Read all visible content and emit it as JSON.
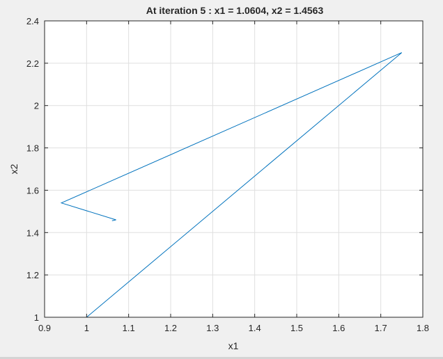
{
  "chart_data": {
    "type": "line",
    "title": "At iteration 5 : x1 = 1.0604, x2 = 1.4563",
    "xlabel": "x1",
    "ylabel": "x2",
    "xlim": [
      0.9,
      1.8
    ],
    "ylim": [
      1.0,
      2.4
    ],
    "xticks": [
      0.9,
      1.0,
      1.1,
      1.2,
      1.3,
      1.4,
      1.5,
      1.6,
      1.7,
      1.8
    ],
    "yticks": [
      1.0,
      1.2,
      1.4,
      1.6,
      1.8,
      2.0,
      2.2,
      2.4
    ],
    "xtick_labels": [
      "0.9",
      "1",
      "1.1",
      "1.2",
      "1.3",
      "1.4",
      "1.5",
      "1.6",
      "1.7",
      "1.8"
    ],
    "ytick_labels": [
      "1",
      "1.2",
      "1.4",
      "1.6",
      "1.8",
      "2",
      "2.2",
      "2.4"
    ],
    "grid": true,
    "series": [
      {
        "color": "#0072bd",
        "x": [
          1.0,
          1.75,
          0.94,
          1.07,
          1.0604
        ],
        "y": [
          1.0,
          2.25,
          1.54,
          1.46,
          1.4563
        ]
      }
    ]
  }
}
